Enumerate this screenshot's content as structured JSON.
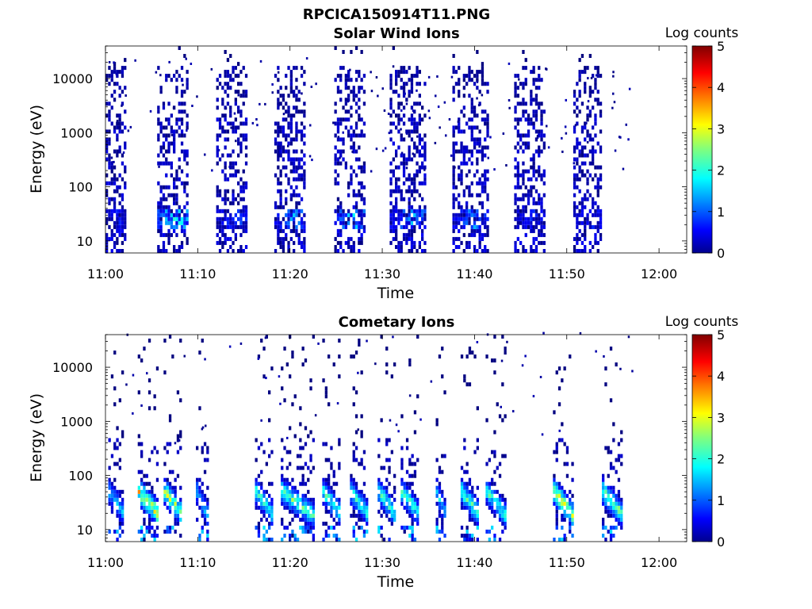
{
  "figure_title": "RPCICA150914T11.PNG",
  "chart_data": [
    {
      "type": "heatmap",
      "title": "Solar Wind Ions",
      "xlabel": "Time",
      "ylabel": "Energy (eV)",
      "x_ticks": [
        "11:00",
        "11:10",
        "11:20",
        "11:30",
        "11:40",
        "11:50",
        "12:00"
      ],
      "xlim_minutes": [
        0,
        63
      ],
      "y_scale": "log",
      "y_ticks": [
        10,
        100,
        1000,
        10000
      ],
      "y_tick_labels": [
        "10",
        "100",
        "1000",
        "10000"
      ],
      "ylim": [
        6,
        40000
      ],
      "colorbar": {
        "label": "Log counts",
        "range": [
          0,
          5
        ],
        "ticks": [
          "0",
          "1",
          "2",
          "3",
          "4",
          "5"
        ],
        "colormap": "jet"
      },
      "bursts_minutes": [
        {
          "start": 0.0,
          "end": 2.3,
          "log_counts_peak": 1.0
        },
        {
          "start": 5.6,
          "end": 8.8,
          "log_counts_peak": 2.6
        },
        {
          "start": 12.0,
          "end": 15.4,
          "log_counts_peak": 1.2
        },
        {
          "start": 18.3,
          "end": 21.5,
          "log_counts_peak": 1.8
        },
        {
          "start": 24.8,
          "end": 28.0,
          "log_counts_peak": 2.0
        },
        {
          "start": 30.8,
          "end": 34.8,
          "log_counts_peak": 1.8
        },
        {
          "start": 37.6,
          "end": 41.6,
          "log_counts_peak": 1.6
        },
        {
          "start": 44.3,
          "end": 47.5,
          "log_counts_peak": 1.0
        },
        {
          "start": 50.7,
          "end": 53.8,
          "log_counts_peak": 0.9
        }
      ]
    },
    {
      "type": "heatmap",
      "title": "Cometary Ions",
      "xlabel": "Time",
      "ylabel": "Energy (eV)",
      "x_ticks": [
        "11:00",
        "11:10",
        "11:20",
        "11:30",
        "11:40",
        "11:50",
        "12:00"
      ],
      "xlim_minutes": [
        0,
        63
      ],
      "y_scale": "log",
      "y_ticks": [
        10,
        100,
        1000,
        10000
      ],
      "y_tick_labels": [
        "10",
        "100",
        "1000",
        "10000"
      ],
      "ylim": [
        6,
        40000
      ],
      "colorbar": {
        "label": "Log counts",
        "range": [
          0,
          5
        ],
        "ticks": [
          "0",
          "1",
          "2",
          "3",
          "4",
          "5"
        ],
        "colormap": "jet"
      },
      "bursts_minutes": [
        {
          "start": 0.3,
          "end": 2.0,
          "log_counts_peak": 2.0
        },
        {
          "start": 3.5,
          "end": 5.8,
          "log_counts_peak": 3.8
        },
        {
          "start": 6.3,
          "end": 8.3,
          "log_counts_peak": 3.3
        },
        {
          "start": 9.8,
          "end": 11.0,
          "log_counts_peak": 2.0
        },
        {
          "start": 16.2,
          "end": 18.2,
          "log_counts_peak": 2.6
        },
        {
          "start": 19.0,
          "end": 22.5,
          "log_counts_peak": 2.9
        },
        {
          "start": 23.5,
          "end": 25.5,
          "log_counts_peak": 2.8
        },
        {
          "start": 26.5,
          "end": 28.5,
          "log_counts_peak": 2.6
        },
        {
          "start": 29.5,
          "end": 31.5,
          "log_counts_peak": 2.8
        },
        {
          "start": 32.0,
          "end": 34.0,
          "log_counts_peak": 2.7
        },
        {
          "start": 35.8,
          "end": 36.8,
          "log_counts_peak": 2.2
        },
        {
          "start": 38.5,
          "end": 40.5,
          "log_counts_peak": 2.8
        },
        {
          "start": 41.2,
          "end": 43.3,
          "log_counts_peak": 2.6
        },
        {
          "start": 48.5,
          "end": 50.6,
          "log_counts_peak": 3.7
        },
        {
          "start": 53.8,
          "end": 56.0,
          "log_counts_peak": 3.1
        }
      ]
    }
  ]
}
